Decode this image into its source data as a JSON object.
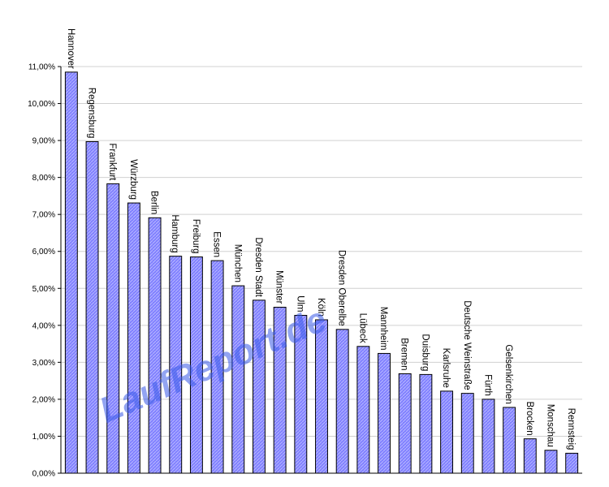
{
  "chart_data": {
    "type": "bar",
    "categories": [
      "Hannover",
      "Regensburg",
      "Frankfurt",
      "Würzburg",
      "Berlin",
      "Hamburg",
      "Freiburg",
      "Essen",
      "München",
      "Dresden Stadt",
      "Münster",
      "Ulm",
      "Köln",
      "Dresden Oberelbe",
      "Lübeck",
      "Mannheim",
      "Bremen",
      "Duisburg",
      "Karlsruhe",
      "Deutsche Weinstraße",
      "Fürth",
      "Gelsenkirchen",
      "Brocken",
      "Monschau",
      "Rennsteig"
    ],
    "values": [
      10.85,
      8.97,
      7.83,
      7.31,
      6.91,
      5.87,
      5.85,
      5.75,
      5.07,
      4.68,
      4.49,
      4.27,
      4.15,
      3.89,
      3.43,
      3.24,
      2.69,
      2.67,
      2.22,
      2.16,
      2.0,
      1.78,
      0.93,
      0.62,
      0.54
    ],
    "ylim": [
      0,
      11
    ],
    "ytick_labels": [
      "0,00%",
      "1,00%",
      "2,00%",
      "3,00%",
      "4,00%",
      "5,00%",
      "6,00%",
      "7,00%",
      "8,00%",
      "9,00%",
      "10,00%",
      "11,00%"
    ],
    "grid": true,
    "bar_color": "#8080ff"
  },
  "watermark": "LaufReport.de",
  "colors": {
    "watermark": "#3a5ae8",
    "bar": "#8080ff",
    "bar_pattern": "#b8b8ff"
  }
}
